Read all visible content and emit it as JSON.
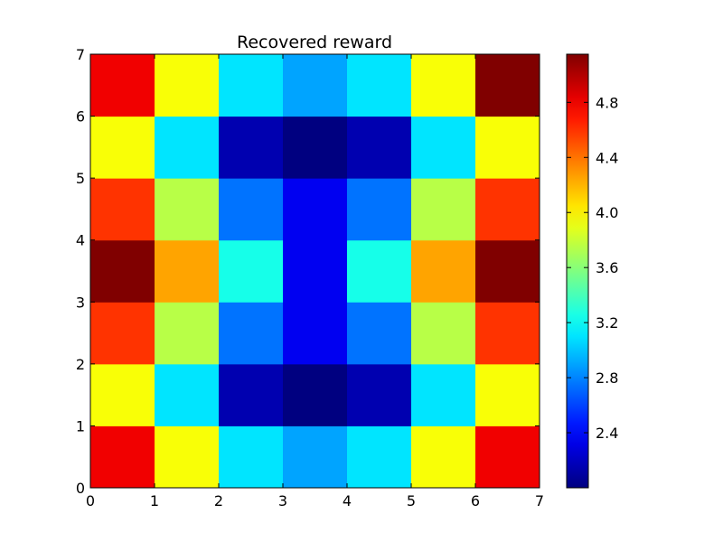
{
  "chart_data": {
    "type": "heatmap",
    "title": "Recovered reward",
    "xlabel": "",
    "ylabel": "",
    "xlim": [
      0,
      7
    ],
    "ylim": [
      0,
      7
    ],
    "x_ticks": [
      "0",
      "1",
      "2",
      "3",
      "4",
      "5",
      "6",
      "7"
    ],
    "y_ticks": [
      "0",
      "1",
      "2",
      "3",
      "4",
      "5",
      "6",
      "7"
    ],
    "grid": false,
    "colormap": "jet",
    "value_range": [
      2.0,
      5.15
    ],
    "colorbar_ticks": [
      "2.4",
      "2.8",
      "3.2",
      "3.6",
      "4.0",
      "4.4",
      "4.8"
    ],
    "colorbar_tick_values": [
      2.4,
      2.8,
      3.2,
      3.6,
      4.0,
      4.4,
      4.8
    ],
    "rows_bottom_to_top": [
      [
        4.8,
        3.95,
        3.1,
        2.9,
        3.1,
        3.95,
        4.8
      ],
      [
        3.95,
        3.1,
        2.15,
        2.0,
        2.15,
        3.1,
        3.95
      ],
      [
        4.6,
        3.75,
        2.75,
        2.35,
        2.75,
        3.75,
        4.6
      ],
      [
        5.15,
        4.25,
        3.25,
        2.35,
        3.25,
        4.25,
        5.15
      ],
      [
        4.6,
        3.75,
        2.75,
        2.35,
        2.75,
        3.75,
        4.6
      ],
      [
        3.95,
        3.1,
        2.15,
        2.0,
        2.15,
        3.1,
        3.95
      ],
      [
        4.8,
        3.95,
        3.1,
        2.9,
        3.1,
        3.95,
        5.15
      ]
    ]
  }
}
